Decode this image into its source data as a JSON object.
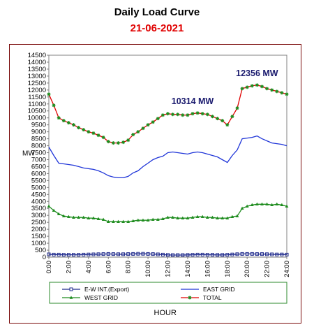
{
  "header": {
    "title": "Daily Load Curve",
    "date": "21-06-2021"
  },
  "chart_data": {
    "type": "line",
    "ylabel": "MW",
    "xlabel": "HOUR",
    "ylim": [
      0,
      14500
    ],
    "ytick_step": 500,
    "xlim": [
      0,
      24
    ],
    "xticks": [
      "0:00",
      "2:00",
      "4:00",
      "6:00",
      "8:00",
      "10:00",
      "12:00",
      "14:00",
      "16:00",
      "18:00",
      "20:00",
      "22:00",
      "24:00"
    ],
    "grid": false,
    "legend": "bottom",
    "annotations": [
      {
        "text": "10314 MW",
        "x": 14.5,
        "y": 11000
      },
      {
        "text": "12356 MW",
        "x": 21.0,
        "y": 13000
      }
    ],
    "x": [
      0,
      0.5,
      1,
      1.5,
      2,
      2.5,
      3,
      3.5,
      4,
      4.5,
      5,
      5.5,
      6,
      6.5,
      7,
      7.5,
      8,
      8.5,
      9,
      9.5,
      10,
      10.5,
      11,
      11.5,
      12,
      12.5,
      13,
      13.5,
      14,
      14.5,
      15,
      15.5,
      16,
      16.5,
      17,
      17.5,
      18,
      18.5,
      19,
      19.5,
      20,
      20.5,
      21,
      21.5,
      22,
      22.5,
      23,
      23.5,
      24
    ],
    "series": [
      {
        "name": "E-W INT.(Export)",
        "color": "#1f2a8c",
        "marker": "square",
        "values": [
          200,
          180,
          180,
          170,
          170,
          170,
          170,
          180,
          190,
          200,
          210,
          220,
          230,
          220,
          210,
          210,
          220,
          230,
          240,
          240,
          230,
          220,
          200,
          180,
          160,
          150,
          150,
          150,
          160,
          170,
          180,
          180,
          170,
          170,
          160,
          160,
          170,
          190,
          210,
          230,
          230,
          230,
          220,
          220,
          210,
          200,
          190,
          190,
          180
        ]
      },
      {
        "name": "EAST GRID",
        "color": "#1f35d8",
        "marker": "none",
        "values": [
          7900,
          7300,
          6750,
          6700,
          6650,
          6600,
          6500,
          6400,
          6350,
          6300,
          6200,
          6050,
          5850,
          5750,
          5700,
          5700,
          5800,
          6050,
          6200,
          6500,
          6750,
          7000,
          7150,
          7250,
          7500,
          7550,
          7500,
          7450,
          7400,
          7500,
          7550,
          7500,
          7400,
          7300,
          7200,
          7000,
          6800,
          7300,
          7700,
          8500,
          8550,
          8600,
          8700,
          8500,
          8350,
          8200,
          8150,
          8100,
          8000
        ]
      },
      {
        "name": "WEST GRID",
        "color": "#1e8c1e",
        "marker": "triangle",
        "values": [
          3650,
          3350,
          3100,
          2950,
          2900,
          2850,
          2850,
          2850,
          2800,
          2800,
          2750,
          2700,
          2550,
          2550,
          2550,
          2550,
          2550,
          2600,
          2650,
          2650,
          2650,
          2700,
          2700,
          2750,
          2850,
          2850,
          2800,
          2800,
          2800,
          2850,
          2900,
          2900,
          2850,
          2850,
          2800,
          2800,
          2800,
          2900,
          2950,
          3500,
          3650,
          3750,
          3800,
          3800,
          3800,
          3750,
          3800,
          3750,
          3650
        ]
      },
      {
        "name": "TOTAL",
        "color": "#e00000",
        "marker": "star",
        "markerColor": "#1e8c1e",
        "values": [
          11700,
          10900,
          10000,
          9800,
          9650,
          9500,
          9300,
          9150,
          9000,
          8900,
          8750,
          8600,
          8300,
          8200,
          8200,
          8250,
          8400,
          8800,
          9000,
          9250,
          9500,
          9700,
          9950,
          10200,
          10300,
          10250,
          10250,
          10200,
          10200,
          10300,
          10350,
          10300,
          10250,
          10100,
          9950,
          9800,
          9500,
          10100,
          10700,
          12100,
          12200,
          12300,
          12356,
          12250,
          12100,
          12000,
          11900,
          11800,
          11700
        ]
      }
    ]
  }
}
